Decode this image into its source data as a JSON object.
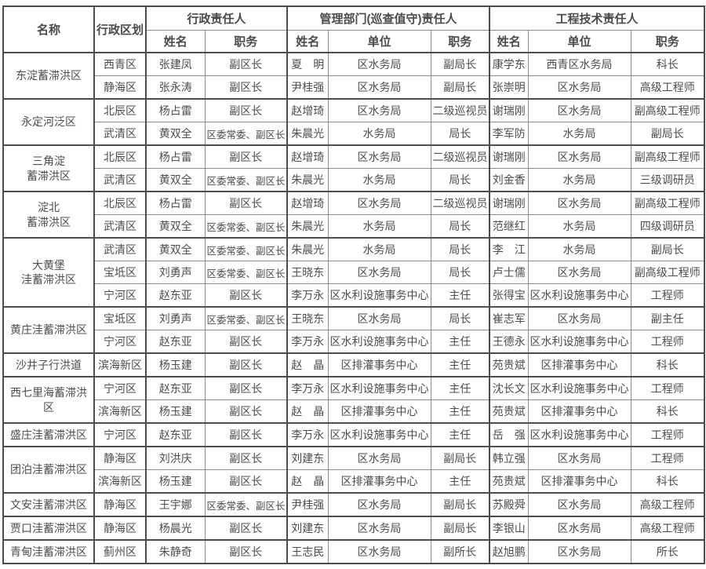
{
  "colors": {
    "background": "#ffffff",
    "border_thin": "#8c8c8c",
    "border_thick": "#4c4c4c",
    "text": "#4d4d4d"
  },
  "table": {
    "header": {
      "col_name": "名称",
      "col_district": "行政区划",
      "groups": [
        {
          "label": "行政责任人",
          "cols": [
            "姓名",
            "职务"
          ]
        },
        {
          "label": "管理部门(巡查值守)责任人",
          "cols": [
            "姓名",
            "单位",
            "职务"
          ]
        },
        {
          "label": "工程技术责任人",
          "cols": [
            "姓名",
            "单位",
            "职务"
          ]
        }
      ]
    },
    "column_keys": [
      "district",
      "admin-name",
      "admin-title",
      "mgmt-name",
      "mgmt-unit",
      "mgmt-title",
      "tech-name",
      "tech-unit",
      "tech-title"
    ],
    "groups": [
      {
        "name_lines": [
          "东淀蓄滞洪区"
        ],
        "rows": [
          [
            "西青区",
            "张建凤",
            "副区长",
            "夏　明",
            "区水务局",
            "副局长",
            "康学东",
            "西青区水务局",
            "科长"
          ],
          [
            "静海区",
            "张永涛",
            "副区长",
            "尹桂强",
            "区水务局",
            "副局长",
            "张崇明",
            "区水务局",
            "高级工程师"
          ]
        ]
      },
      {
        "name_lines": [
          "永定河泛区"
        ],
        "rows": [
          [
            "北辰区",
            "杨占雷",
            "副区长",
            "赵增琦",
            "区水务局",
            "二级巡视员",
            "谢瑞刚",
            "区水务局",
            "副高级工程师"
          ],
          [
            "武清区",
            "黄双全",
            "区委常委、副区长",
            "朱晨光",
            "水务局",
            "局长",
            "李军防",
            "水务局",
            "副局长"
          ]
        ]
      },
      {
        "name_lines": [
          "三角淀",
          "蓄滞洪区"
        ],
        "rows": [
          [
            "北辰区",
            "杨占雷",
            "副区长",
            "赵增琦",
            "区水务局",
            "二级巡视员",
            "谢瑞刚",
            "区水务局",
            "副高级工程师"
          ],
          [
            "武清区",
            "黄双全",
            "区委常委、副区长",
            "朱晨光",
            "水务局",
            "局长",
            "刘金香",
            "水务局",
            "三级调研员"
          ]
        ]
      },
      {
        "name_lines": [
          "淀北",
          "蓄滞洪区"
        ],
        "rows": [
          [
            "北辰区",
            "杨占雷",
            "副区长",
            "赵增琦",
            "区水务局",
            "二级巡视员",
            "谢瑞刚",
            "区水务局",
            "副高级工程师"
          ],
          [
            "武清区",
            "黄双全",
            "区委常委、副区长",
            "朱晨光",
            "水务局",
            "局长",
            "范继红",
            "水务局",
            "四级调研员"
          ]
        ]
      },
      {
        "name_lines": [
          "大黄堡",
          "洼蓄滞洪区"
        ],
        "rows": [
          [
            "武清区",
            "黄双全",
            "区委常委、副区长",
            "朱晨光",
            "水务局",
            "局长",
            "李　江",
            "水务局",
            "副局长"
          ],
          [
            "宝坻区",
            "刘勇声",
            "区委常委、副区长",
            "王晓东",
            "区水务局",
            "局长",
            "卢士儒",
            "区水务局",
            "副高级工程师"
          ],
          [
            "宁河区",
            "赵东亚",
            "副区长",
            "李万永",
            "区水利设施事务中心",
            "主任",
            "张得宝",
            "区水利设施事务中心",
            "工程师"
          ]
        ]
      },
      {
        "name_lines": [
          "黄庄洼蓄滞洪区"
        ],
        "rows": [
          [
            "宝坻区",
            "刘勇声",
            "区委常委、副区长",
            "王晓东",
            "区水务局",
            "局长",
            "崔志军",
            "区水务局",
            "副主任"
          ],
          [
            "宁河区",
            "赵东亚",
            "副区长",
            "李万永",
            "区水利设施事务中心",
            "主任",
            "王德永",
            "区水利设施事务中心",
            "工程师"
          ]
        ]
      },
      {
        "name_lines": [
          "沙井子行洪道"
        ],
        "rows": [
          [
            "滨海新区",
            "杨玉建",
            "副区长",
            "赵　晶",
            "区排灌事务中心",
            "主任",
            "苑贵斌",
            "区排灌事务中心",
            "科长"
          ]
        ]
      },
      {
        "name_lines": [
          "西七里海蓄滞洪区"
        ],
        "rows": [
          [
            "宁河区",
            "赵东亚",
            "副区长",
            "李万永",
            "区水利设施事务中心",
            "主任",
            "沈长文",
            "区水利设施事务中心",
            "工程师"
          ],
          [
            "滨海新区",
            "杨玉建",
            "副区长",
            "赵　晶",
            "区排灌事务中心",
            "主任",
            "苑贵斌",
            "区排灌事务中心",
            "科长"
          ]
        ]
      },
      {
        "name_lines": [
          "盛庄洼蓄滞洪区"
        ],
        "rows": [
          [
            "宁河区",
            "赵东亚",
            "副区长",
            "李万永",
            "区水利设施事务中心",
            "主任",
            "岳　强",
            "区水利设施事务中心",
            "工程师"
          ]
        ]
      },
      {
        "name_lines": [
          "团泊洼蓄滞洪区"
        ],
        "rows": [
          [
            "静海区",
            "刘洪庆",
            "副区长",
            "刘建东",
            "区水务局",
            "副局长",
            "韩立强",
            "区水务局",
            "工程师"
          ],
          [
            "滨海新区",
            "杨玉建",
            "副区长",
            "赵　晶",
            "区排灌事务中心",
            "主任",
            "苑贵斌",
            "区排灌事务中心",
            "科长"
          ]
        ]
      },
      {
        "name_lines": [
          "文安洼蓄滞洪区"
        ],
        "rows": [
          [
            "静海区",
            "王宇娜",
            "区委常委、副区长",
            "尹桂强",
            "区水务局",
            "副局长",
            "苏殿舜",
            "区水务局",
            "高级工程师"
          ]
        ]
      },
      {
        "name_lines": [
          "贾口洼蓄滞洪区"
        ],
        "rows": [
          [
            "静海区",
            "杨晨光",
            "副区长",
            "刘建东",
            "区水务局",
            "副局长",
            "李银山",
            "区水务局",
            "高级工程师"
          ]
        ]
      },
      {
        "name_lines": [
          "青甸洼蓄滞洪区"
        ],
        "rows": [
          [
            "蓟州区",
            "朱静奇",
            "副区长",
            "王志民",
            "区水务局",
            "副所长",
            "赵旭鹏",
            "区水务局",
            "所长"
          ]
        ]
      }
    ]
  }
}
